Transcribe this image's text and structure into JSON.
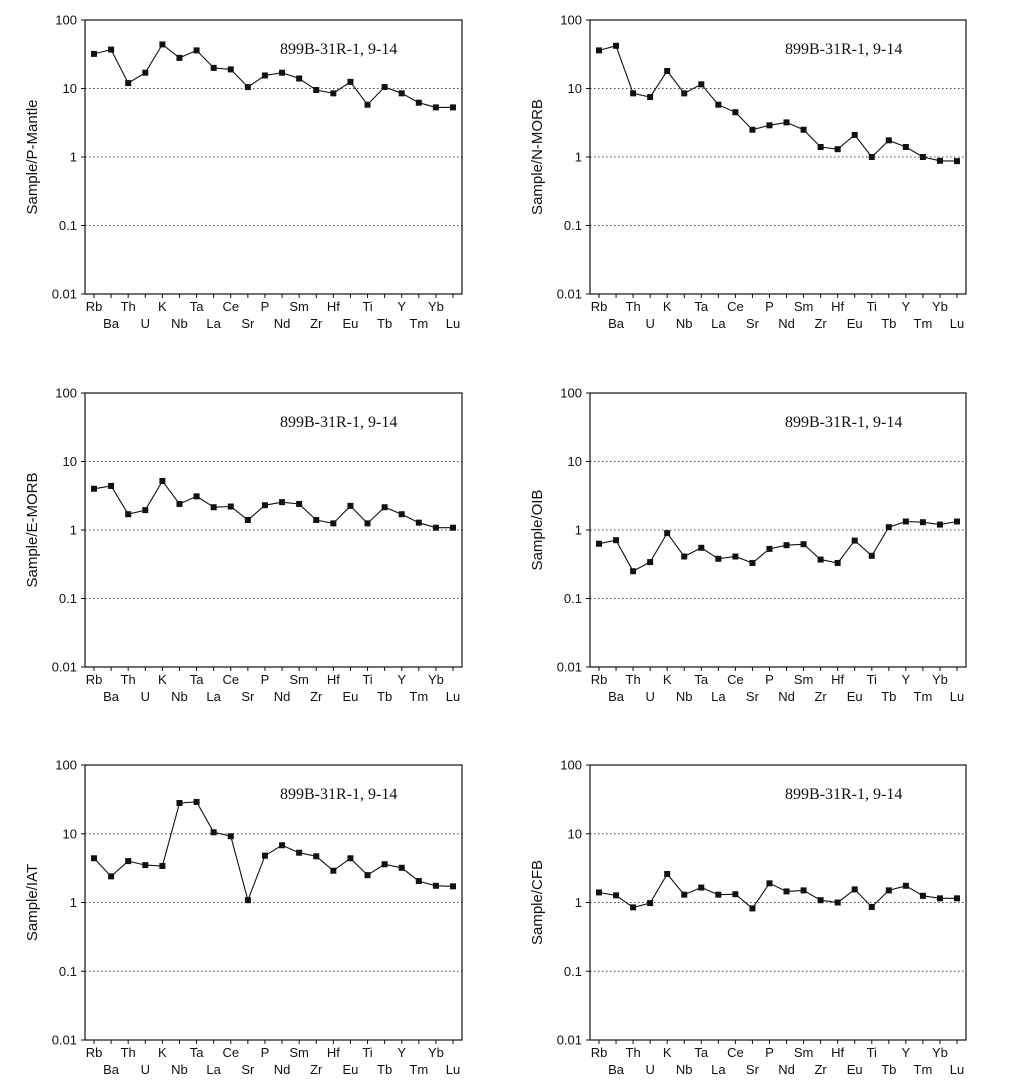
{
  "figure": {
    "title_color": "#111111",
    "line_color": "#111111",
    "grid_color": "#444444"
  },
  "chart_data": [
    {
      "type": "line",
      "sample": "899B-31R-1, 9-14",
      "ylabel": "Sample/P-Mantle",
      "yscale": "log",
      "ylim": [
        0.01,
        100
      ],
      "yticks": [
        "0.01",
        "0.1",
        "1",
        "10",
        "100"
      ],
      "grid": "dotted horizontal at decades",
      "categories": [
        "Rb",
        "Ba",
        "Th",
        "U",
        "K",
        "Nb",
        "Ta",
        "La",
        "Ce",
        "Sr",
        "P",
        "Nd",
        "Sm",
        "Zr",
        "Hf",
        "Eu",
        "Ti",
        "Tb",
        "Y",
        "Tm",
        "Yb",
        "Lu"
      ],
      "top_labels": [
        "Rb",
        "Th",
        "K",
        "Ta",
        "Ce",
        "P",
        "Sm",
        "Hf",
        "Ti",
        "Y",
        "Yb"
      ],
      "bottom_labels": [
        "Ba",
        "U",
        "Nb",
        "La",
        "Sr",
        "Nd",
        "Zr",
        "Eu",
        "Tb",
        "Tm",
        "Lu"
      ],
      "values": [
        32,
        37,
        12,
        17,
        44,
        28,
        36,
        20,
        19,
        10.5,
        15.5,
        17,
        14,
        9.5,
        8.5,
        12.5,
        5.8,
        10.5,
        8.5,
        6.2,
        5.3,
        5.3
      ]
    },
    {
      "type": "line",
      "sample": "899B-31R-1, 9-14",
      "ylabel": "Sample/N-MORB",
      "yscale": "log",
      "ylim": [
        0.01,
        100
      ],
      "yticks": [
        "0.01",
        "0.1",
        "1",
        "10",
        "100"
      ],
      "grid": "dotted horizontal at decades",
      "categories": [
        "Rb",
        "Ba",
        "Th",
        "U",
        "K",
        "Nb",
        "Ta",
        "La",
        "Ce",
        "Sr",
        "P",
        "Nd",
        "Sm",
        "Zr",
        "Hf",
        "Eu",
        "Ti",
        "Tb",
        "Y",
        "Tm",
        "Yb",
        "Lu"
      ],
      "top_labels": [
        "Rb",
        "Th",
        "K",
        "Ta",
        "Ce",
        "P",
        "Sm",
        "Hf",
        "Ti",
        "Y",
        "Yb"
      ],
      "bottom_labels": [
        "Ba",
        "U",
        "Nb",
        "La",
        "Sr",
        "Nd",
        "Zr",
        "Eu",
        "Tb",
        "Tm",
        "Lu"
      ],
      "values": [
        36,
        42,
        8.5,
        7.5,
        18,
        8.5,
        11.5,
        5.8,
        4.5,
        2.5,
        2.9,
        3.2,
        2.5,
        1.4,
        1.3,
        2.1,
        1.0,
        1.75,
        1.4,
        1.0,
        0.88,
        0.87
      ]
    },
    {
      "type": "line",
      "sample": "899B-31R-1, 9-14",
      "ylabel": "Sample/E-MORB",
      "yscale": "log",
      "ylim": [
        0.01,
        100
      ],
      "yticks": [
        "0.01",
        "0.1",
        "1",
        "10",
        "100"
      ],
      "grid": "dotted horizontal at decades",
      "categories": [
        "Rb",
        "Ba",
        "Th",
        "U",
        "K",
        "Nb",
        "Ta",
        "La",
        "Ce",
        "Sr",
        "P",
        "Nd",
        "Sm",
        "Zr",
        "Hf",
        "Eu",
        "Ti",
        "Tb",
        "Y",
        "Tm",
        "Yb",
        "Lu"
      ],
      "top_labels": [
        "Rb",
        "Th",
        "K",
        "Ta",
        "Ce",
        "P",
        "Sm",
        "Hf",
        "Ti",
        "Y",
        "Yb"
      ],
      "bottom_labels": [
        "Ba",
        "U",
        "Nb",
        "La",
        "Sr",
        "Nd",
        "Zr",
        "Eu",
        "Tb",
        "Tm",
        "Lu"
      ],
      "values": [
        4.0,
        4.4,
        1.7,
        1.95,
        5.2,
        2.4,
        3.1,
        2.15,
        2.2,
        1.4,
        2.3,
        2.55,
        2.4,
        1.4,
        1.25,
        2.25,
        1.25,
        2.15,
        1.7,
        1.28,
        1.08,
        1.08
      ]
    },
    {
      "type": "line",
      "sample": "899B-31R-1, 9-14",
      "ylabel": "Sample/OIB",
      "yscale": "log",
      "ylim": [
        0.01,
        100
      ],
      "yticks": [
        "0.01",
        "0.1",
        "1",
        "10",
        "100"
      ],
      "grid": "dotted horizontal at decades",
      "categories": [
        "Rb",
        "Ba",
        "Th",
        "U",
        "K",
        "Nb",
        "Ta",
        "La",
        "Ce",
        "Sr",
        "P",
        "Nd",
        "Sm",
        "Zr",
        "Hf",
        "Eu",
        "Ti",
        "Tb",
        "Y",
        "Tm",
        "Yb",
        "Lu"
      ],
      "top_labels": [
        "Rb",
        "Th",
        "K",
        "Ta",
        "Ce",
        "P",
        "Sm",
        "Hf",
        "Ti",
        "Y",
        "Yb"
      ],
      "bottom_labels": [
        "Ba",
        "U",
        "Nb",
        "La",
        "Sr",
        "Nd",
        "Zr",
        "Eu",
        "Tb",
        "Tm",
        "Lu"
      ],
      "values": [
        0.63,
        0.71,
        0.25,
        0.34,
        0.9,
        0.41,
        0.55,
        0.38,
        0.41,
        0.33,
        0.53,
        0.6,
        0.62,
        0.37,
        0.33,
        0.7,
        0.42,
        1.1,
        1.33,
        1.3,
        1.2,
        1.33
      ]
    },
    {
      "type": "line",
      "sample": "899B-31R-1, 9-14",
      "ylabel": "Sample/IAT",
      "yscale": "log",
      "ylim": [
        0.01,
        100
      ],
      "yticks": [
        "0.01",
        "0.1",
        "1",
        "10",
        "100"
      ],
      "grid": "dotted horizontal at decades",
      "categories": [
        "Rb",
        "Ba",
        "Th",
        "U",
        "K",
        "Nb",
        "Ta",
        "La",
        "Ce",
        "Sr",
        "P",
        "Nd",
        "Sm",
        "Zr",
        "Hf",
        "Eu",
        "Ti",
        "Tb",
        "Y",
        "Tm",
        "Yb",
        "Lu"
      ],
      "top_labels": [
        "Rb",
        "Th",
        "K",
        "Ta",
        "Ce",
        "P",
        "Sm",
        "Hf",
        "Ti",
        "Y",
        "Yb"
      ],
      "bottom_labels": [
        "Ba",
        "U",
        "Nb",
        "La",
        "Sr",
        "Nd",
        "Zr",
        "Eu",
        "Tb",
        "Tm",
        "Lu"
      ],
      "values": [
        4.4,
        2.4,
        4.0,
        3.5,
        3.4,
        28,
        29,
        10.5,
        9.2,
        1.08,
        4.8,
        6.8,
        5.3,
        4.7,
        2.9,
        4.4,
        2.5,
        3.6,
        3.2,
        2.05,
        1.75,
        1.72
      ]
    },
    {
      "type": "line",
      "sample": "899B-31R-1, 9-14",
      "ylabel": "Sample/CFB",
      "yscale": "log",
      "ylim": [
        0.01,
        100
      ],
      "yticks": [
        "0.01",
        "0.1",
        "1",
        "10",
        "100"
      ],
      "grid": "dotted horizontal at decades",
      "categories": [
        "Rb",
        "Ba",
        "Th",
        "U",
        "K",
        "Nb",
        "Ta",
        "La",
        "Ce",
        "Sr",
        "P",
        "Nd",
        "Sm",
        "Zr",
        "Hf",
        "Eu",
        "Ti",
        "Tb",
        "Y",
        "Tm",
        "Yb",
        "Lu"
      ],
      "top_labels": [
        "Rb",
        "Th",
        "K",
        "Ta",
        "Ce",
        "P",
        "Sm",
        "Hf",
        "Ti",
        "Y",
        "Yb"
      ],
      "bottom_labels": [
        "Ba",
        "U",
        "Nb",
        "La",
        "Sr",
        "Nd",
        "Zr",
        "Eu",
        "Tb",
        "Tm",
        "Lu"
      ],
      "values": [
        1.4,
        1.27,
        0.85,
        0.98,
        2.6,
        1.3,
        1.65,
        1.3,
        1.32,
        0.82,
        1.9,
        1.45,
        1.5,
        1.08,
        1.0,
        1.55,
        0.86,
        1.5,
        1.75,
        1.25,
        1.15,
        1.15
      ]
    }
  ]
}
